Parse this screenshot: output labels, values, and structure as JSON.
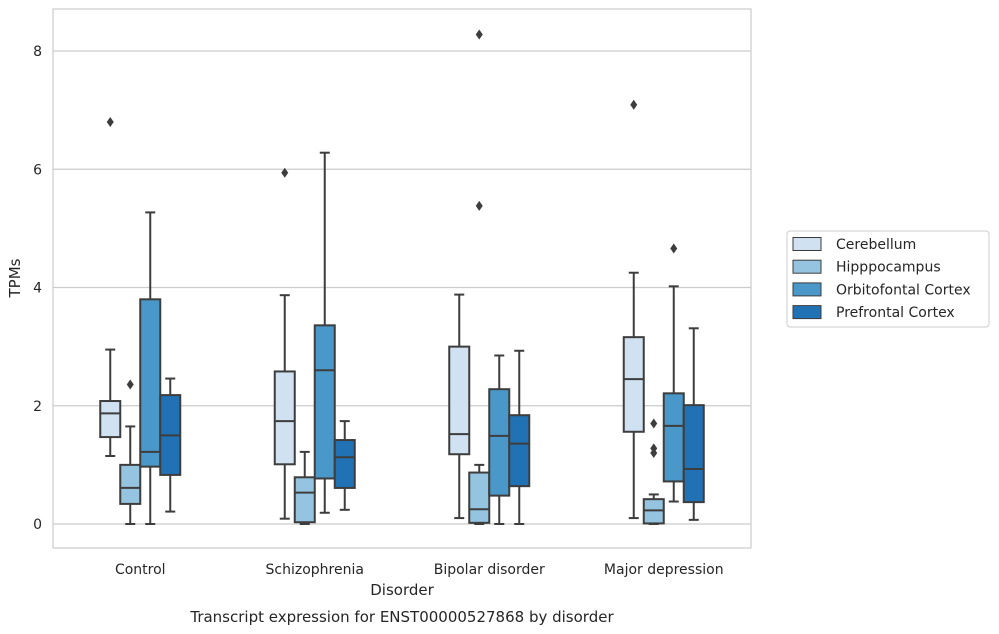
{
  "chart_data": {
    "type": "boxplot",
    "title": "Transcript expression for ENST00000527868 by disorder",
    "xlabel": "Disorder",
    "ylabel": "TPMs",
    "ylim": [
      -0.4,
      8.7
    ],
    "y_ticks": [
      0,
      2,
      4,
      6,
      8
    ],
    "grid": "horizontal",
    "legend_position": "right",
    "categories": [
      "Control",
      "Schizophrenia",
      "Bipolar disorder",
      "Major depression"
    ],
    "series": [
      {
        "name": "Cerebellum",
        "color": "#d0e1f2",
        "boxes": [
          {
            "whisker_low": 1.15,
            "q1": 1.47,
            "median": 1.87,
            "q3": 2.08,
            "whisker_high": 2.95,
            "outliers": [
              6.8
            ]
          },
          {
            "whisker_low": 0.09,
            "q1": 1.01,
            "median": 1.74,
            "q3": 2.58,
            "whisker_high": 3.87,
            "outliers": [
              5.94
            ]
          },
          {
            "whisker_low": 0.1,
            "q1": 1.18,
            "median": 1.52,
            "q3": 3.0,
            "whisker_high": 3.88,
            "outliers": []
          },
          {
            "whisker_low": 0.1,
            "q1": 1.56,
            "median": 2.45,
            "q3": 3.16,
            "whisker_high": 4.25,
            "outliers": [
              7.09
            ]
          }
        ]
      },
      {
        "name": "Hipppocampus",
        "color": "#94c4df",
        "boxes": [
          {
            "whisker_low": 0.0,
            "q1": 0.34,
            "median": 0.61,
            "q3": 1.0,
            "whisker_high": 1.65,
            "outliers": [
              2.36
            ]
          },
          {
            "whisker_low": 0.0,
            "q1": 0.03,
            "median": 0.53,
            "q3": 0.79,
            "whisker_high": 1.22,
            "outliers": []
          },
          {
            "whisker_low": 0.0,
            "q1": 0.02,
            "median": 0.25,
            "q3": 0.87,
            "whisker_high": 1.0,
            "outliers": [
              8.28,
              5.38
            ]
          },
          {
            "whisker_low": 0.0,
            "q1": 0.01,
            "median": 0.23,
            "q3": 0.42,
            "whisker_high": 0.5,
            "outliers": [
              1.7,
              1.28,
              1.2
            ]
          }
        ]
      },
      {
        "name": "Orbitofontal Cortex",
        "color": "#4a98c9",
        "boxes": [
          {
            "whisker_low": 0.0,
            "q1": 0.97,
            "median": 1.22,
            "q3": 3.8,
            "whisker_high": 5.27,
            "outliers": []
          },
          {
            "whisker_low": 0.19,
            "q1": 0.77,
            "median": 2.6,
            "q3": 3.36,
            "whisker_high": 6.28,
            "outliers": []
          },
          {
            "whisker_low": 0.0,
            "q1": 0.48,
            "median": 1.49,
            "q3": 2.28,
            "whisker_high": 2.85,
            "outliers": []
          },
          {
            "whisker_low": 0.38,
            "q1": 0.72,
            "median": 1.66,
            "q3": 2.21,
            "whisker_high": 4.02,
            "outliers": [
              4.66
            ]
          }
        ]
      },
      {
        "name": "Prefrontal Cortex",
        "color": "#2171b5",
        "boxes": [
          {
            "whisker_low": 0.21,
            "q1": 0.83,
            "median": 1.5,
            "q3": 2.18,
            "whisker_high": 2.46,
            "outliers": []
          },
          {
            "whisker_low": 0.24,
            "q1": 0.61,
            "median": 1.13,
            "q3": 1.42,
            "whisker_high": 1.74,
            "outliers": []
          },
          {
            "whisker_low": 0.0,
            "q1": 0.64,
            "median": 1.36,
            "q3": 1.84,
            "whisker_high": 2.93,
            "outliers": []
          },
          {
            "whisker_low": 0.07,
            "q1": 0.37,
            "median": 0.93,
            "q3": 2.01,
            "whisker_high": 3.31,
            "outliers": []
          }
        ]
      }
    ]
  }
}
